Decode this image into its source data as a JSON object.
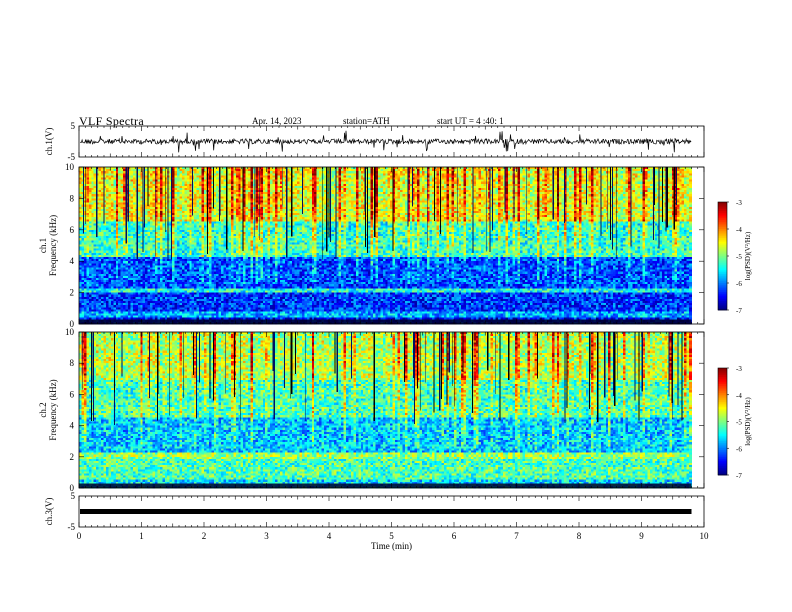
{
  "header": {
    "title": "VLF Spectra",
    "date": "Apr. 14, 2023",
    "station": "station=ATH",
    "start": "start UT = 4 :40: 1"
  },
  "chart_data": [
    {
      "type": "line",
      "panel": "ch1-waveform",
      "ylabel": "ch.1(V)",
      "yticks": [
        "5",
        "-5"
      ],
      "ylim": [
        -5,
        5
      ],
      "xlim": [
        0,
        10
      ],
      "x_end": 9.8,
      "baseline": 0,
      "color": "#000000"
    },
    {
      "type": "heatmap",
      "panel": "ch1-spectrogram",
      "ylabel": "ch.1\nFrequency (kHz)",
      "ylabel_lines": [
        "ch.1",
        "Frequency (kHz)"
      ],
      "yticks": [
        "0",
        "2",
        "4",
        "6",
        "8",
        "10"
      ],
      "ylim": [
        0,
        10
      ],
      "xlim": [
        0,
        10
      ],
      "x_end": 9.8,
      "colorbar": {
        "label": "log(PSD)(V²/Hz)",
        "ticks": [
          "-3",
          "-4",
          "-5",
          "-6",
          "-7"
        ],
        "range": [
          -7,
          -3
        ]
      },
      "bands": [
        {
          "f0": 0.0,
          "f1": 0.4,
          "level": -6.5
        },
        {
          "f0": 0.4,
          "f1": 0.8,
          "level": -5.8
        },
        {
          "f0": 0.8,
          "f1": 2.0,
          "level": -6.3
        },
        {
          "f0": 2.0,
          "f1": 2.3,
          "level": -5.4
        },
        {
          "f0": 2.3,
          "f1": 4.3,
          "level": -6.2
        },
        {
          "f0": 4.3,
          "f1": 6.5,
          "level": -5.3
        },
        {
          "f0": 6.5,
          "f1": 10.0,
          "level": -4.6
        }
      ]
    },
    {
      "type": "heatmap",
      "panel": "ch2-spectrogram",
      "ylabel": "ch.2\nFrequency (kHz)",
      "ylabel_lines": [
        "ch.2",
        "Frequency (kHz)"
      ],
      "yticks": [
        "0",
        "2",
        "4",
        "6",
        "8",
        "10"
      ],
      "ylim": [
        0,
        10
      ],
      "xlim": [
        0,
        10
      ],
      "x_end": 9.8,
      "colorbar": {
        "label": "log(PSD)(V²/Hz)",
        "ticks": [
          "-3",
          "-4",
          "-5",
          "-6",
          "-7"
        ],
        "range": [
          -7,
          -3
        ]
      },
      "bands": [
        {
          "f0": 0.0,
          "f1": 0.5,
          "level": -5.6
        },
        {
          "f0": 0.5,
          "f1": 1.9,
          "level": -5.2
        },
        {
          "f0": 1.9,
          "f1": 2.2,
          "level": -4.9
        },
        {
          "f0": 2.2,
          "f1": 4.5,
          "level": -5.7
        },
        {
          "f0": 4.5,
          "f1": 7.0,
          "level": -5.2
        },
        {
          "f0": 7.0,
          "f1": 10.0,
          "level": -4.8
        }
      ]
    },
    {
      "type": "line",
      "panel": "ch3-waveform",
      "ylabel": "ch.3(V)",
      "yticks": [
        "5",
        "-5"
      ],
      "ylim": [
        -5,
        5
      ],
      "xlim": [
        0,
        10
      ],
      "x_end": 9.8,
      "baseline": 0,
      "xlabel": "Time (min)",
      "xticks": [
        "0",
        "1",
        "2",
        "3",
        "4",
        "5",
        "6",
        "7",
        "8",
        "9",
        "10"
      ],
      "color": "#000000"
    }
  ]
}
